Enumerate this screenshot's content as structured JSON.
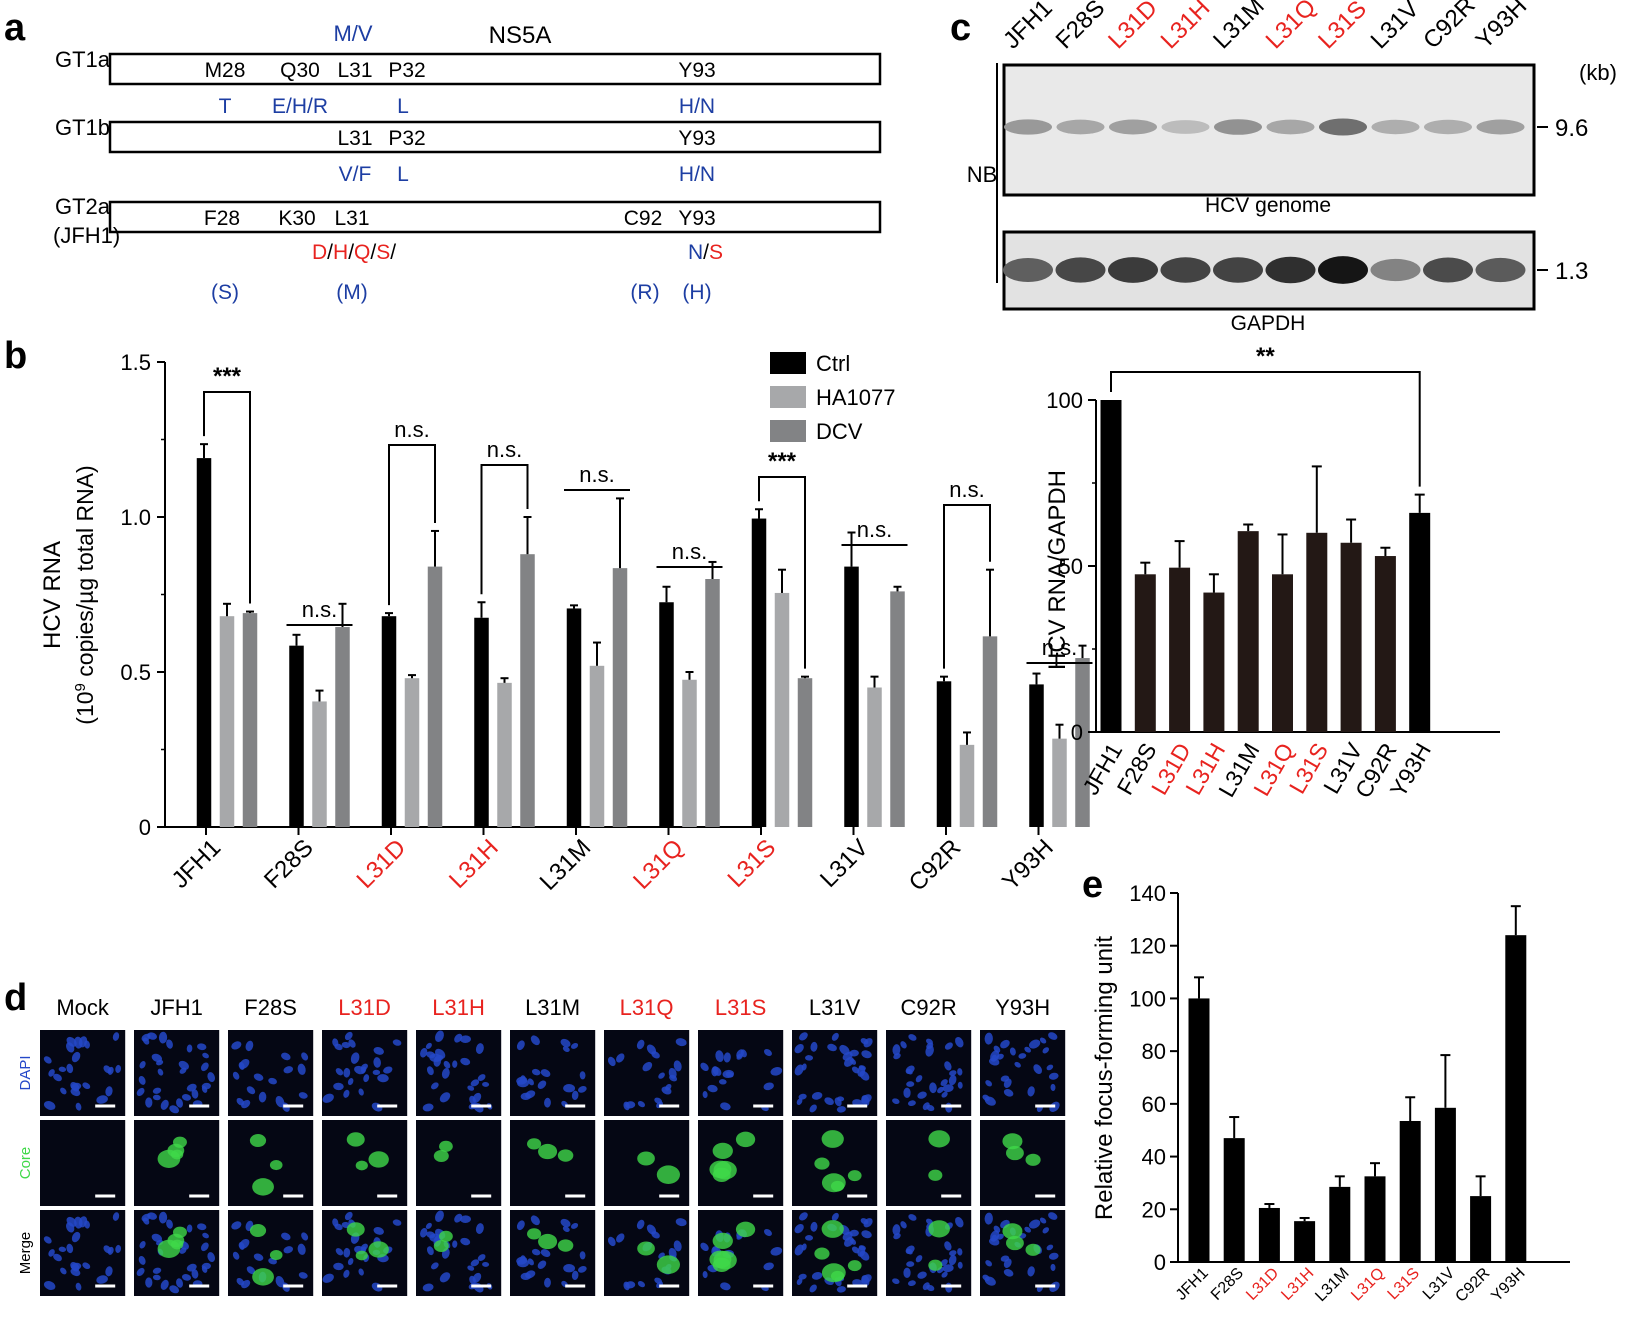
{
  "colors": {
    "black": "#000000",
    "dark": "#231815",
    "gray": "#a7a8aa",
    "darkgray": "#828385",
    "red": "#e8231f",
    "blue": "#1d3ea3",
    "cellblue": "#2548c8",
    "cellgreen": "#3fd848",
    "cellbg": "#050714"
  },
  "panel_a": {
    "letter": "a",
    "title": "NS5A",
    "rows": [
      {
        "label": [
          "GT1a"
        ],
        "above": [
          {
            "t": "M/V",
            "c": "blue"
          }
        ],
        "sites": [
          "M28",
          "Q30",
          "L31",
          "P32",
          "Y93"
        ],
        "below": [
          {
            "t": "T",
            "c": "blue"
          },
          {
            "t": "E/H/R",
            "c": "blue"
          },
          {
            "t": "L",
            "c": "blue"
          },
          {
            "t": "H/N",
            "c": "blue"
          }
        ]
      },
      {
        "label": [
          "GT1b"
        ],
        "sites": [
          "L31",
          "P32",
          "Y93"
        ],
        "below": [
          {
            "t": "V/F",
            "c": "blue"
          },
          {
            "t": "L",
            "c": "blue"
          },
          {
            "t": "H/N",
            "c": "blue"
          }
        ]
      },
      {
        "label": [
          "GT2a",
          "(JFH1)"
        ],
        "sites": [
          "F28",
          "K30",
          "L31",
          "C92",
          "Y93"
        ],
        "below_parts": [
          [
            {
              "t": "D",
              "c": "red"
            },
            {
              "t": "/",
              "c": "black"
            },
            {
              "t": "H",
              "c": "red"
            },
            {
              "t": "/",
              "c": "black"
            },
            {
              "t": "Q",
              "c": "red"
            },
            {
              "t": "/",
              "c": "black"
            },
            {
              "t": "S",
              "c": "red"
            },
            {
              "t": "/",
              "c": "black"
            }
          ],
          [
            {
              "t": "N",
              "c": "blue"
            },
            {
              "t": "/",
              "c": "black"
            },
            {
              "t": "S",
              "c": "red"
            }
          ]
        ],
        "paren": [
          "(S)",
          "(M)",
          "(R)",
          "(H)"
        ]
      }
    ]
  },
  "panel_b_letter": "b",
  "panel_c_letter": "c",
  "panel_d_letter": "d",
  "panel_e_letter": "e",
  "chart_data": [
    {
      "id": "b",
      "type": "bar",
      "ylabel": [
        "HCV RNA",
        "(10",
        "9",
        " copies/µg total RNA)"
      ],
      "ylim": [
        0,
        1.5
      ],
      "yticks": [
        "0",
        "0.5",
        "1.0",
        "1.5"
      ],
      "categories": [
        "JFH1",
        "F28S",
        "L31D",
        "L31H",
        "L31M",
        "L31Q",
        "L31S",
        "L31V",
        "C92R",
        "Y93H"
      ],
      "category_colors": [
        "black",
        "black",
        "red",
        "red",
        "black",
        "red",
        "red",
        "black",
        "black",
        "black"
      ],
      "series": [
        {
          "name": "Ctrl",
          "color": "black",
          "values": [
            1.19,
            0.585,
            0.68,
            0.675,
            0.705,
            0.725,
            0.995,
            0.84,
            0.47,
            0.46
          ],
          "errors": [
            0.045,
            0.035,
            0.01,
            0.05,
            0.01,
            0.05,
            0.03,
            0.11,
            0.015,
            0.035
          ]
        },
        {
          "name": "HA1077",
          "color": "gray",
          "values": [
            0.68,
            0.405,
            0.48,
            0.465,
            0.52,
            0.475,
            0.755,
            0.45,
            0.265,
            0.285
          ],
          "errors": [
            0.04,
            0.035,
            0.01,
            0.015,
            0.075,
            0.025,
            0.075,
            0.035,
            0.04,
            0.045
          ]
        },
        {
          "name": "DCV",
          "color": "darkgray",
          "values": [
            0.69,
            0.645,
            0.84,
            0.88,
            0.835,
            0.8,
            0.48,
            0.76,
            0.615,
            0.545
          ],
          "errors": [
            0.005,
            0.075,
            0.115,
            0.12,
            0.225,
            0.055,
            0.005,
            0.015,
            0.215,
            0.04
          ]
        }
      ],
      "legend": [
        "Ctrl",
        "HA1077",
        "DCV"
      ],
      "legend_position": "top-right",
      "annotations": [
        {
          "cat": 0,
          "label": "***",
          "from": "Ctrl",
          "to": "DCV"
        },
        {
          "cat": 1,
          "label": "n.s.",
          "from": "Ctrl",
          "to": "DCV"
        },
        {
          "cat": 2,
          "label": "n.s.",
          "from": "Ctrl",
          "to": "DCV"
        },
        {
          "cat": 3,
          "label": "n.s.",
          "from": "Ctrl",
          "to": "DCV"
        },
        {
          "cat": 4,
          "label": "n.s.",
          "from": "Ctrl",
          "to": "DCV"
        },
        {
          "cat": 5,
          "label": "n.s.",
          "from": "Ctrl",
          "to": "DCV"
        },
        {
          "cat": 6,
          "label": "***",
          "from": "Ctrl",
          "to": "DCV"
        },
        {
          "cat": 7,
          "label": "n.s.",
          "from": "Ctrl",
          "to": "DCV"
        },
        {
          "cat": 8,
          "label": "n.s.",
          "from": "Ctrl",
          "to": "DCV"
        },
        {
          "cat": 9,
          "label": "n.s.",
          "from": "Ctrl",
          "to": "DCV"
        }
      ]
    },
    {
      "id": "c",
      "type": "bar",
      "ylabel": "HCV RNA/GAPDH",
      "ylim": [
        0,
        100
      ],
      "yticks": [
        "0",
        "50",
        "100"
      ],
      "categories": [
        "JFH1",
        "F28S",
        "L31D",
        "L31H",
        "L31M",
        "L31Q",
        "L31S",
        "L31V",
        "C92R",
        "Y93H"
      ],
      "category_colors": [
        "black",
        "black",
        "red",
        "red",
        "black",
        "red",
        "red",
        "black",
        "black",
        "black"
      ],
      "bar_colors": [
        "black",
        "dark",
        "dark",
        "dark",
        "dark",
        "dark",
        "dark",
        "dark",
        "dark",
        "black"
      ],
      "values": [
        100,
        47.5,
        49.5,
        42,
        60.5,
        47.5,
        60,
        57,
        53,
        66
      ],
      "errors": [
        0,
        3.5,
        8,
        5.5,
        2,
        12,
        20,
        7,
        2.5,
        5.5
      ],
      "annotations": [
        {
          "from": 0,
          "to": 9,
          "label": "**"
        }
      ]
    },
    {
      "id": "e",
      "type": "bar",
      "ylabel": "Relative focus-forming unit",
      "ylim": [
        0,
        140
      ],
      "yticks": [
        "0",
        "20",
        "40",
        "60",
        "80",
        "100",
        "120",
        "140"
      ],
      "categories": [
        "JFH1",
        "F28S",
        "L31D",
        "L31H",
        "L31M",
        "L31Q",
        "L31S",
        "L31V",
        "C92R",
        "Y93H"
      ],
      "category_colors": [
        "black",
        "black",
        "red",
        "red",
        "black",
        "red",
        "red",
        "black",
        "black",
        "black"
      ],
      "values": [
        100,
        47,
        20.5,
        15.5,
        28.5,
        32.5,
        53.5,
        58.5,
        25,
        124
      ],
      "errors": [
        8,
        8,
        1.5,
        1.2,
        4,
        5,
        9,
        20,
        7.5,
        11
      ]
    }
  ],
  "panel_c_blot": {
    "lanes": [
      "JFH1",
      "F28S",
      "L31D",
      "L31H",
      "L31M",
      "L31Q",
      "L31S",
      "L31V",
      "C92R",
      "Y93H"
    ],
    "lane_colors": [
      "black",
      "black",
      "red",
      "red",
      "black",
      "red",
      "red",
      "black",
      "black",
      "black"
    ],
    "kb_label": "(kb)",
    "side_label": "NB",
    "genome_label": "HCV genome",
    "gapdh_label": "GAPDH",
    "size_1": "9.6",
    "size_2": "1.3",
    "genome_intensity": [
      0.55,
      0.45,
      0.5,
      0.3,
      0.6,
      0.45,
      0.85,
      0.4,
      0.4,
      0.5
    ],
    "gapdh_intensity": [
      0.6,
      0.72,
      0.78,
      0.74,
      0.74,
      0.84,
      0.97,
      0.42,
      0.7,
      0.62
    ]
  },
  "panel_d": {
    "columns": [
      "Mock",
      "JFH1",
      "F28S",
      "L31D",
      "L31H",
      "L31M",
      "L31Q",
      "L31S",
      "L31V",
      "C92R",
      "Y93H"
    ],
    "column_colors": [
      "black",
      "black",
      "black",
      "red",
      "red",
      "black",
      "red",
      "red",
      "black",
      "black",
      "black"
    ],
    "row_labels": [
      "DAPI",
      "Core",
      "Merge"
    ],
    "row_label_colors": [
      "cellblue",
      "cellgreen",
      "black"
    ],
    "infected_cell_counts": [
      0,
      4,
      3,
      3,
      2,
      3,
      2,
      5,
      5,
      2,
      3
    ]
  }
}
